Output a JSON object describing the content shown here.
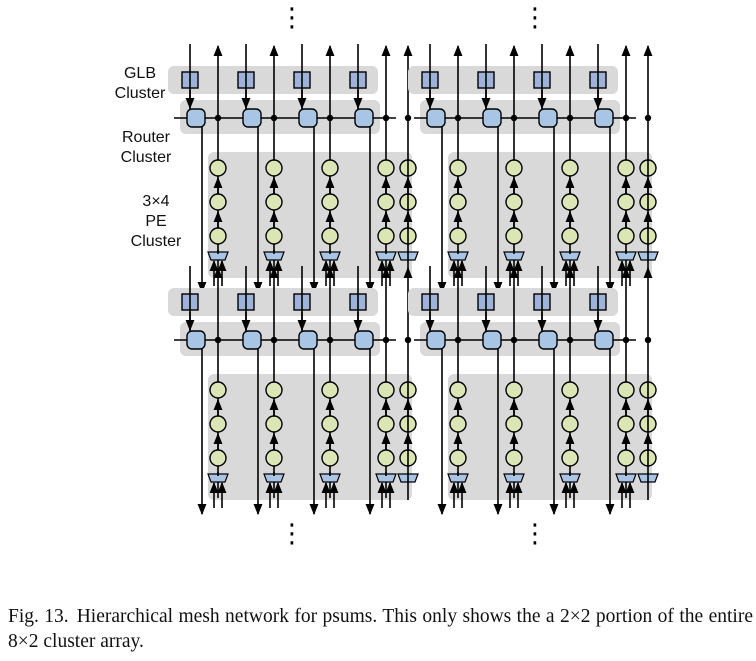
{
  "diagram": {
    "labels": {
      "glb": "GLB\nCluster",
      "router": "Router\nCluster",
      "pe": "3×4\nPE\nCluster"
    },
    "colors": {
      "cluster_bg": "#d9d9d9",
      "glb_fill": "#9db3d9",
      "router_fill": "#a8c5e6",
      "pe_fill": "#dbe6b4",
      "line": "#000000"
    },
    "ellipsis": "⋮"
  },
  "caption": {
    "number": "Fig. 13.",
    "text": "Hierarchical mesh network for psums. This only shows the a 2×2 portion of the entire 8×2 cluster array."
  }
}
